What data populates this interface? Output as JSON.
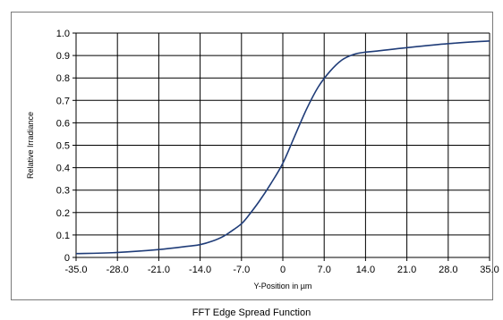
{
  "chart_data": {
    "type": "line",
    "title": "FFT Edge Spread Function",
    "xlabel": "Y-Position in µm",
    "ylabel": "Relative Irradiance",
    "xlim": [
      -35,
      35
    ],
    "ylim": [
      0,
      1
    ],
    "x_ticks": [
      "-35.0",
      "-28.0",
      "-21.0",
      "-14.0",
      "-7.0",
      "0",
      "7.0",
      "14.0",
      "21.0",
      "28.0",
      "35.0"
    ],
    "y_ticks": [
      "0",
      "0.1",
      "0.2",
      "0.3",
      "0.4",
      "0.5",
      "0.6",
      "0.7",
      "0.8",
      "0.9",
      "1.0"
    ],
    "grid": true,
    "line_color": "#1f3c78",
    "series": [
      {
        "x": [
          -35,
          -28,
          -21,
          -16,
          -14,
          -12,
          -10,
          -8,
          -7,
          -6,
          -4,
          -2,
          0,
          2,
          4,
          6,
          8,
          10,
          12,
          14,
          16,
          21,
          28,
          35
        ],
        "y": [
          0.017,
          0.022,
          0.035,
          0.05,
          0.057,
          0.072,
          0.095,
          0.13,
          0.15,
          0.18,
          0.25,
          0.33,
          0.42,
          0.54,
          0.66,
          0.76,
          0.83,
          0.88,
          0.905,
          0.915,
          0.92,
          0.935,
          0.953,
          0.965
        ]
      }
    ]
  }
}
